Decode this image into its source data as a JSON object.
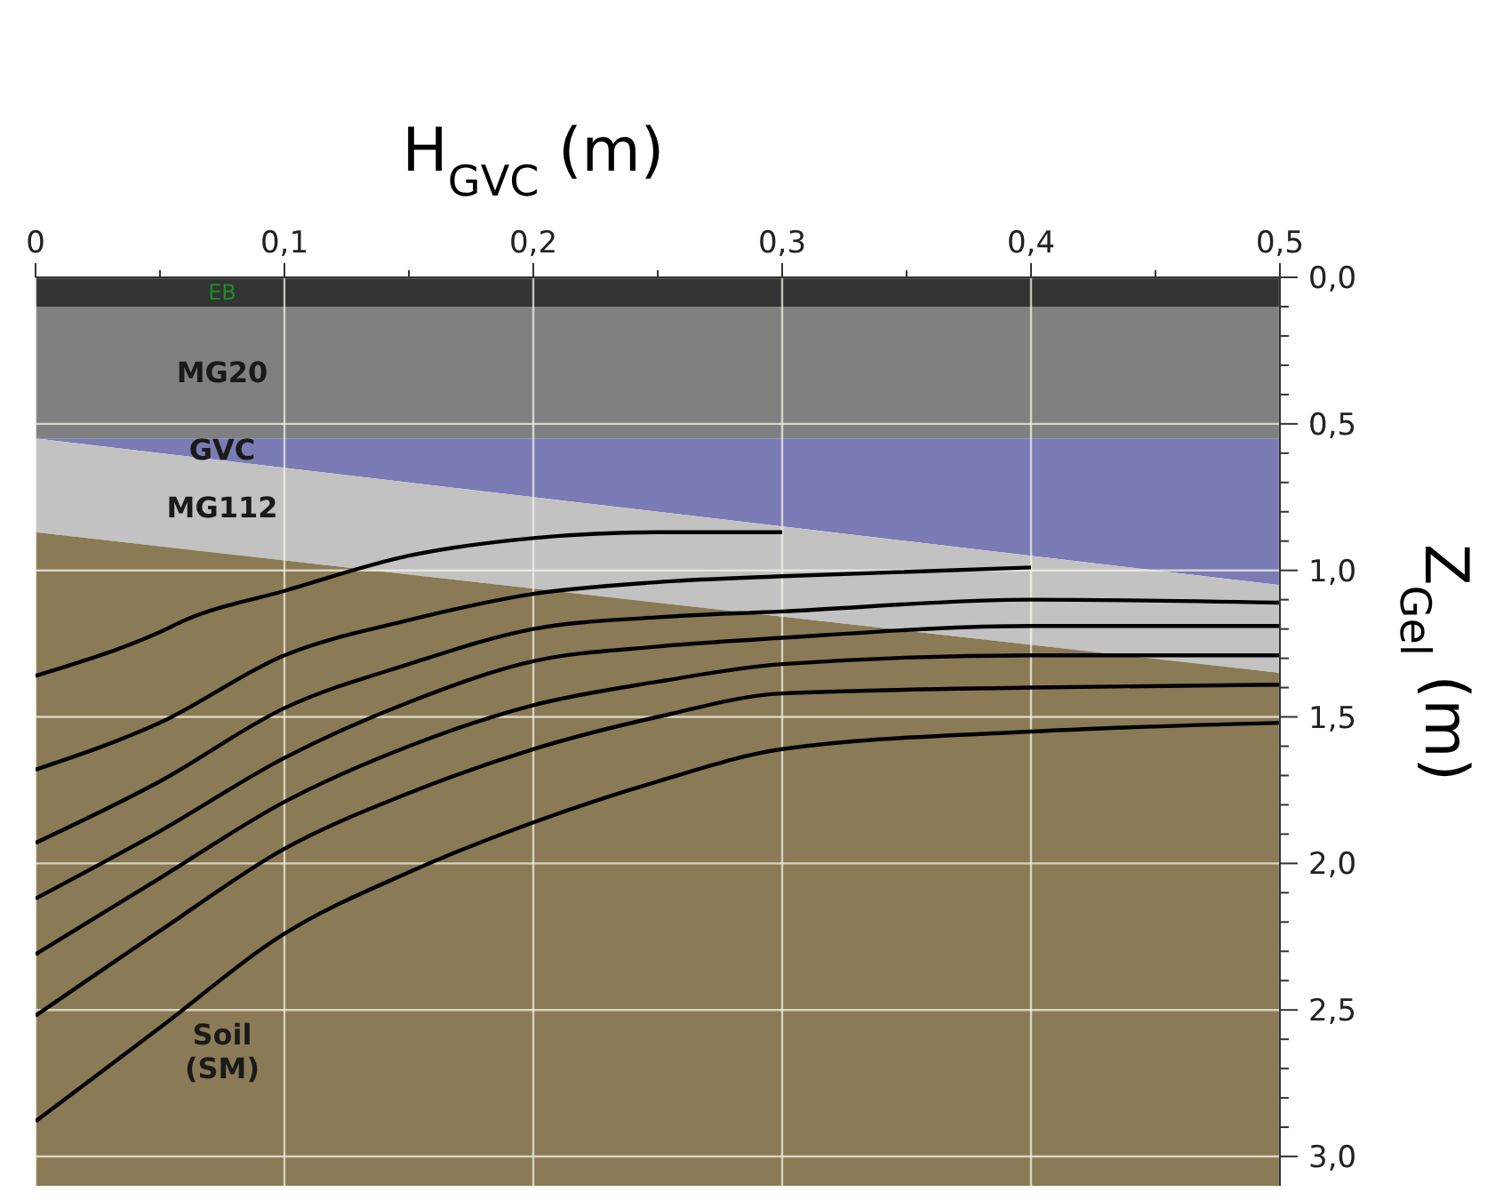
{
  "chart_data": {
    "type": "line",
    "xlabel": "H$_{GVC}$ (m)",
    "ylabel": "Z$_{Gel}$ (m)",
    "stacked": true,
    "grid": true,
    "xlim": [
      0,
      0.5
    ],
    "ylim": [
      3.1,
      0
    ],
    "xticks": [
      0,
      {
        "value": 0.05,
        "label": null
      },
      {
        "value": 0.1,
        "label": "0,1"
      },
      {
        "value": 0.15,
        "label": null
      },
      {
        "value": 0.2,
        "label": "0,2"
      },
      {
        "value": 0.25,
        "label": null
      },
      {
        "value": 0.3,
        "label": "0,3"
      },
      {
        "value": 0.35,
        "label": null
      },
      {
        "value": 0.4,
        "label": "0,4"
      },
      {
        "value": 0.45,
        "label": null
      },
      {
        "value": 0.5,
        "label": "0,5"
      }
    ],
    "yticks": [
      {
        "value": 0,
        "label": "0,0"
      },
      {
        "value": 0.1,
        "label": null
      },
      {
        "value": 0.2,
        "label": null
      },
      {
        "value": 0.3,
        "label": null
      },
      {
        "value": 0.4,
        "label": null
      },
      {
        "value": 0.5,
        "label": "0,5"
      },
      {
        "value": 0.6,
        "label": null
      },
      {
        "value": 0.7,
        "label": null
      },
      {
        "value": 0.8,
        "label": null
      },
      {
        "value": 0.9,
        "label": null
      },
      {
        "value": 1,
        "label": "1,0"
      },
      {
        "value": 1.1,
        "label": null
      },
      {
        "value": 1.2,
        "label": null
      },
      {
        "value": 1.3,
        "label": null
      },
      {
        "value": 1.4,
        "label": null
      },
      {
        "value": 1.5,
        "label": "1,5"
      },
      {
        "value": 1.6,
        "label": null
      },
      {
        "value": 1.7,
        "label": null
      },
      {
        "value": 1.8,
        "label": null
      },
      {
        "value": 1.9,
        "label": null
      },
      {
        "value": 2,
        "label": "2,0"
      },
      {
        "value": 2.1,
        "label": null
      },
      {
        "value": 2.2,
        "label": null
      },
      {
        "value": 2.3,
        "label": null
      },
      {
        "value": 2.4,
        "label": null
      },
      {
        "value": 2.5,
        "label": "2,5"
      },
      {
        "value": 2.6,
        "label": null
      },
      {
        "value": 2.7,
        "label": null
      },
      {
        "value": 2.8,
        "label": null
      },
      {
        "value": 2.9,
        "label": null
      },
      {
        "value": 3,
        "label": "3,0"
      }
    ],
    "series": [
      {
        "type": "area",
        "name": "EB",
        "color": "#333333",
        "x": [
          0,
          0.5
        ],
        "values": [
          0.1,
          0.1
        ]
      },
      {
        "type": "area",
        "name": "MG20",
        "color": "#808080",
        "x": [
          0,
          0.5
        ],
        "values": [
          0.45,
          0.45
        ]
      },
      {
        "type": "area",
        "name": "GVC",
        "color": "#7b7bb5",
        "x": [
          0,
          0.5
        ],
        "values": [
          0,
          0.5
        ]
      },
      {
        "type": "area",
        "name": "MG112",
        "color": "#c2c2c2",
        "x": [
          0,
          0.5
        ],
        "values": [
          0.32,
          0.3
        ]
      },
      {
        "type": "area",
        "name": "Soil (SM)",
        "color": "#8a7a55",
        "x": [
          0,
          0.5
        ],
        "values": [
          2.23,
          1.75
        ]
      },
      {
        "color": "#000000",
        "x": [
          0,
          0.05,
          0.06,
          0.1,
          0.15,
          0.2,
          0.25,
          0.3
        ],
        "values": [
          1.36,
          1.21,
          1.17,
          1.07,
          0.95,
          0.89,
          0.87,
          0.87
        ]
      },
      {
        "color": "#000000",
        "x": [
          0,
          0.05,
          0.1,
          0.15,
          0.2,
          0.25,
          0.3,
          0.4
        ],
        "values": [
          1.68,
          1.52,
          1.29,
          1.17,
          1.08,
          1.04,
          1.02,
          0.99
        ]
      },
      {
        "color": "#000000",
        "x": [
          0,
          0.05,
          0.1,
          0.15,
          0.2,
          0.25,
          0.3,
          0.4,
          0.5
        ],
        "values": [
          1.93,
          1.72,
          1.47,
          1.32,
          1.2,
          1.16,
          1.14,
          1.1,
          1.11
        ]
      },
      {
        "color": "#000000",
        "x": [
          0,
          0.05,
          0.1,
          0.15,
          0.2,
          0.25,
          0.3,
          0.4,
          0.5
        ],
        "values": [
          2.12,
          1.89,
          1.64,
          1.45,
          1.31,
          1.26,
          1.23,
          1.19,
          1.19
        ]
      },
      {
        "color": "#000000",
        "x": [
          0,
          0.05,
          0.1,
          0.15,
          0.2,
          0.25,
          0.3,
          0.4,
          0.5
        ],
        "values": [
          2.31,
          2.05,
          1.79,
          1.6,
          1.46,
          1.38,
          1.32,
          1.29,
          1.29
        ]
      },
      {
        "color": "#000000",
        "x": [
          0,
          0.05,
          0.1,
          0.15,
          0.2,
          0.25,
          0.3,
          0.4,
          0.5
        ],
        "values": [
          2.52,
          2.23,
          1.95,
          1.76,
          1.61,
          1.5,
          1.42,
          1.4,
          1.39
        ]
      },
      {
        "color": "#000000",
        "x": [
          0,
          0.05,
          0.1,
          0.15,
          0.2,
          0.25,
          0.3,
          0.4,
          0.5
        ],
        "values": [
          2.88,
          2.56,
          2.24,
          2.03,
          1.86,
          1.72,
          1.61,
          1.55,
          1.52
        ]
      }
    ]
  }
}
